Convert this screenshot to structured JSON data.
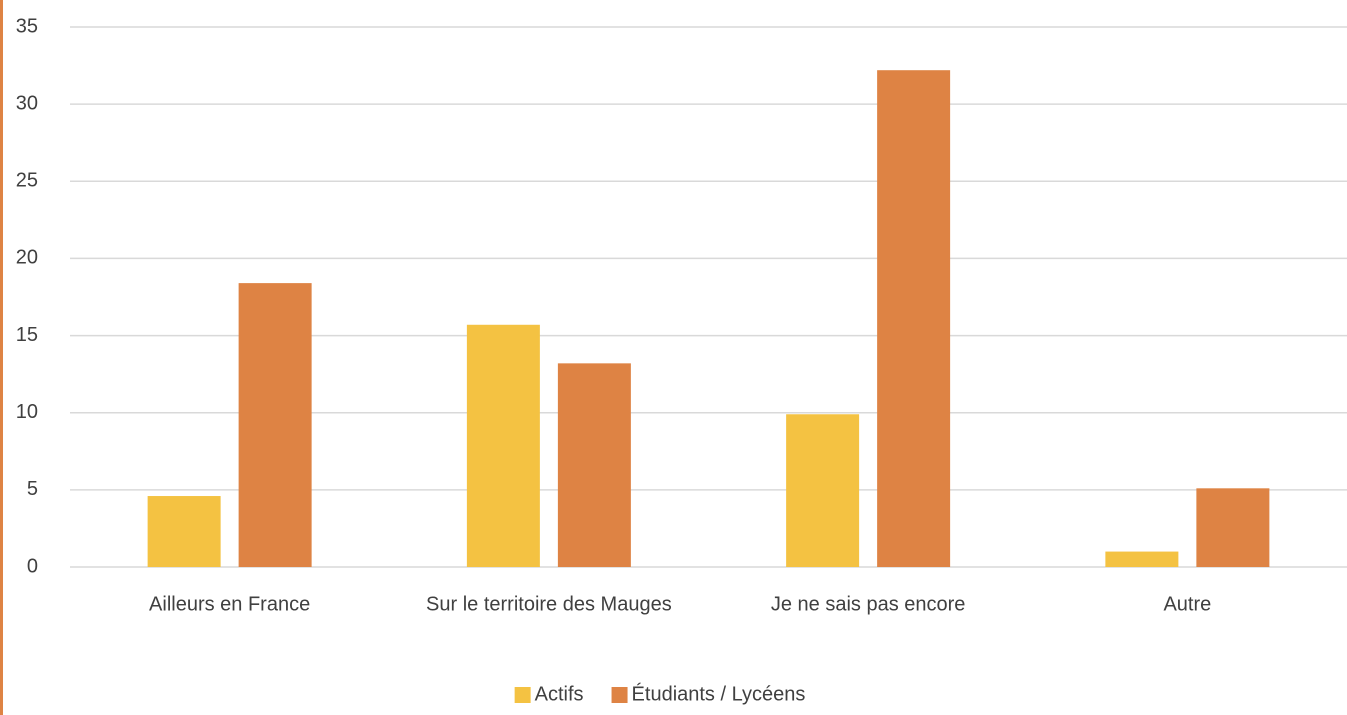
{
  "chart_data": {
    "type": "bar",
    "categories": [
      "Ailleurs en France",
      "Sur le territoire des Mauges",
      "Je ne sais pas encore",
      "Autre"
    ],
    "series": [
      {
        "name": "Actifs",
        "color": "#f4c242",
        "values": [
          4.6,
          15.7,
          9.9,
          1
        ]
      },
      {
        "name": "Étudiants / Lycéens",
        "color": "#de8344",
        "values": [
          18.4,
          13.2,
          32.2,
          5.1
        ]
      }
    ],
    "ylim": [
      0,
      35
    ],
    "yticks": [
      0,
      5,
      10,
      15,
      20,
      25,
      30,
      35
    ],
    "grid": true,
    "legend": "bottom"
  }
}
